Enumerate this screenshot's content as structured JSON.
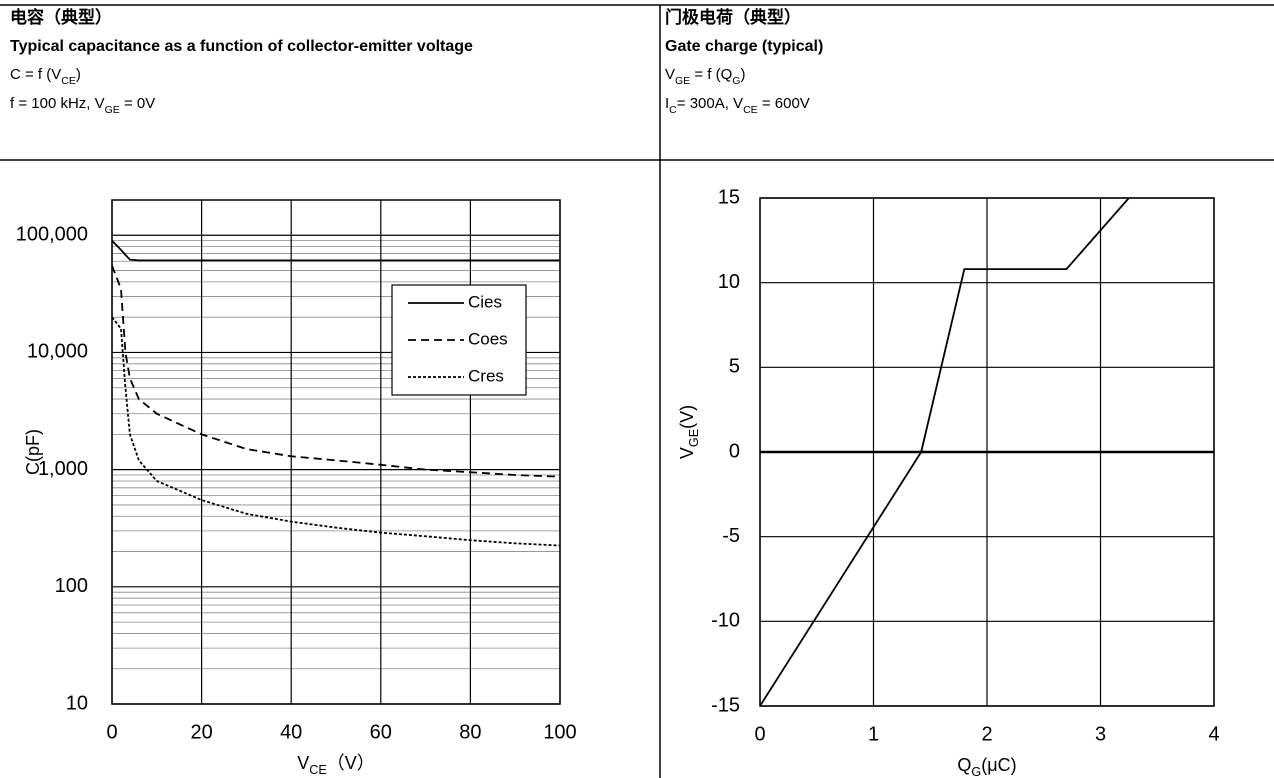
{
  "panels": [
    {
      "title_cn": "电容（典型）",
      "title_en": "Typical capacitance as a function of collector-emitter voltage",
      "formula": [
        "C = f (V",
        "CE",
        ")"
      ],
      "conditions": [
        "f = 100 kHz, V",
        "GE",
        " = 0V"
      ]
    },
    {
      "title_cn": "门极电荷（典型）",
      "title_en": "Gate charge (typical)",
      "formula": [
        "V",
        "GE",
        " = f (Q",
        "G",
        ")"
      ],
      "conditions": [
        "I",
        "C",
        "= 300A, V",
        "CE",
        " = 600V"
      ]
    }
  ],
  "chart_data": [
    {
      "type": "line",
      "x": [
        0,
        2,
        3,
        4,
        6,
        10,
        20,
        30,
        40,
        50,
        60,
        70,
        80,
        90,
        100
      ],
      "series": [
        {
          "name": "Cies",
          "color": "#000000",
          "dash": "solid",
          "values": [
            90000,
            75000,
            68000,
            62000,
            61000,
            61000,
            61000,
            61000,
            61000,
            61000,
            61000,
            61000,
            61000,
            61000,
            61000
          ]
        },
        {
          "name": "Coes",
          "color": "#000000",
          "dash": "dashed",
          "values": [
            55000,
            35000,
            10000,
            6000,
            4000,
            3000,
            2000,
            1500,
            1300,
            1200,
            1100,
            1000,
            950,
            900,
            870
          ]
        },
        {
          "name": "Cres",
          "color": "#000000",
          "dash": "dotted",
          "values": [
            20000,
            16000,
            5000,
            2000,
            1200,
            800,
            550,
            420,
            360,
            320,
            290,
            270,
            250,
            235,
            225
          ]
        }
      ],
      "ylog": true,
      "ylim": [
        10,
        200000
      ],
      "yticks": [
        10,
        100,
        {
          "value": 1000,
          "label": "1,000"
        },
        {
          "value": 10000,
          "label": "10,000"
        },
        {
          "value": 100000,
          "label": "100,000"
        }
      ],
      "xlim": [
        0,
        100
      ],
      "xticks": [
        0,
        20,
        40,
        60,
        80,
        100
      ],
      "grid": true,
      "minor_grid": true,
      "xlabel": [
        "V",
        "CE",
        "（V）"
      ],
      "ylabel": [
        "C(pF)"
      ],
      "legend": "upper right"
    },
    {
      "type": "line",
      "x": [
        0,
        1.42,
        1.8,
        2.7,
        3.25
      ],
      "values": [
        -15,
        0,
        10.8,
        10.8,
        15
      ],
      "color": "#000000",
      "ylog": false,
      "ylim": [
        -15,
        15
      ],
      "yticks": [
        -15,
        -10,
        -5,
        0,
        5,
        10,
        15
      ],
      "xlim": [
        0,
        4
      ],
      "xticks": [
        0,
        1,
        2,
        3,
        4
      ],
      "grid": true,
      "zero_line": true,
      "xlabel": [
        "Q",
        "G",
        "(μC)"
      ],
      "ylabel": [
        "V",
        "GE",
        "(V)"
      ]
    }
  ]
}
